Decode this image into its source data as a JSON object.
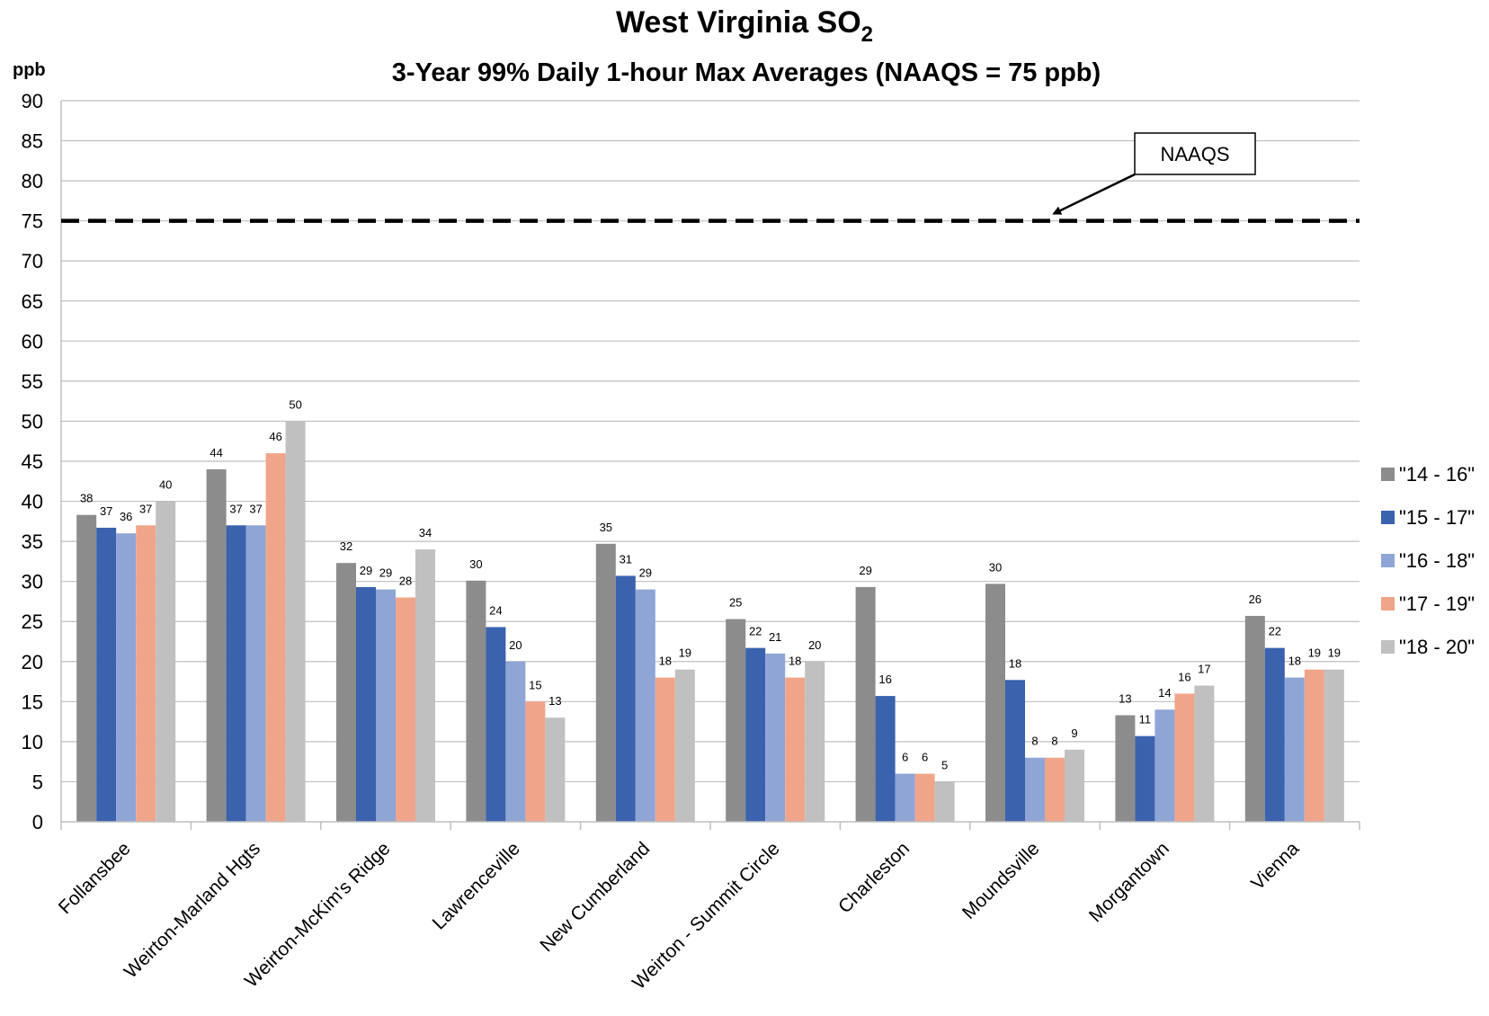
{
  "chart_data": {
    "type": "bar",
    "title": "West Virginia SO",
    "title_subscript": "2",
    "subtitle": "3-Year 99% Daily 1-hour Max Averages (NAAQS = 75 ppb)",
    "ylabel": "ppb",
    "ylim": [
      0,
      90
    ],
    "yticks": [
      "0",
      "5",
      "10",
      "15",
      "20",
      "25",
      "30",
      "35",
      "40",
      "45",
      "50",
      "55",
      "60",
      "65",
      "70",
      "75",
      "80",
      "85",
      "90"
    ],
    "grid": true,
    "legend_position": "right",
    "categories": [
      "Follansbee",
      "Weirton-Marland Hgts",
      "Weirton-McKim's Ridge",
      "Lawrenceville",
      "New Cumberland",
      "Weirton - Summit Circle",
      "Charleston",
      "Moundsville",
      "Morgantown",
      "Vienna"
    ],
    "series": [
      {
        "name": "\"14 - 16\"",
        "color": "#8c8c8c",
        "values": [
          38.3,
          44,
          32.3,
          30.1,
          34.7,
          25.3,
          29.3,
          29.7,
          13.3,
          25.7
        ],
        "labels": [
          "38",
          "44",
          "32",
          "30",
          "35",
          "25",
          "29",
          "30",
          "13",
          "26"
        ]
      },
      {
        "name": "\"15 - 17\"",
        "color": "#3a62ad",
        "values": [
          36.7,
          37,
          29.3,
          24.3,
          30.7,
          21.7,
          15.7,
          17.7,
          10.7,
          21.7
        ],
        "labels": [
          "37",
          "37",
          "29",
          "24",
          "31",
          "22",
          "16",
          "18",
          "11",
          "22"
        ]
      },
      {
        "name": "\"16 - 18\"",
        "color": "#8fa5d6",
        "values": [
          36,
          37,
          29,
          20,
          29,
          21,
          6,
          8,
          14,
          18
        ],
        "labels": [
          "36",
          "37",
          "29",
          "20",
          "29",
          "21",
          "6",
          "8",
          "14",
          "18"
        ]
      },
      {
        "name": "\"17 - 19\"",
        "color": "#f0a58a",
        "values": [
          37,
          46,
          28,
          15,
          18,
          18,
          6,
          8,
          16,
          19
        ],
        "labels": [
          "37",
          "46",
          "28",
          "15",
          "18",
          "18",
          "6",
          "8",
          "16",
          "19"
        ]
      },
      {
        "name": "\"18 - 20\"",
        "color": "#c0c0c0",
        "values": [
          40,
          50,
          34,
          13,
          19,
          20,
          5,
          9,
          17,
          19
        ],
        "labels": [
          "40",
          "50",
          "34",
          "13",
          "19",
          "20",
          "5",
          "9",
          "17",
          "19"
        ]
      }
    ],
    "reference_line": {
      "value": 75,
      "style": "dashed",
      "color": "#000000"
    },
    "annotation": {
      "text": "NAAQS",
      "points_to": 75
    }
  }
}
